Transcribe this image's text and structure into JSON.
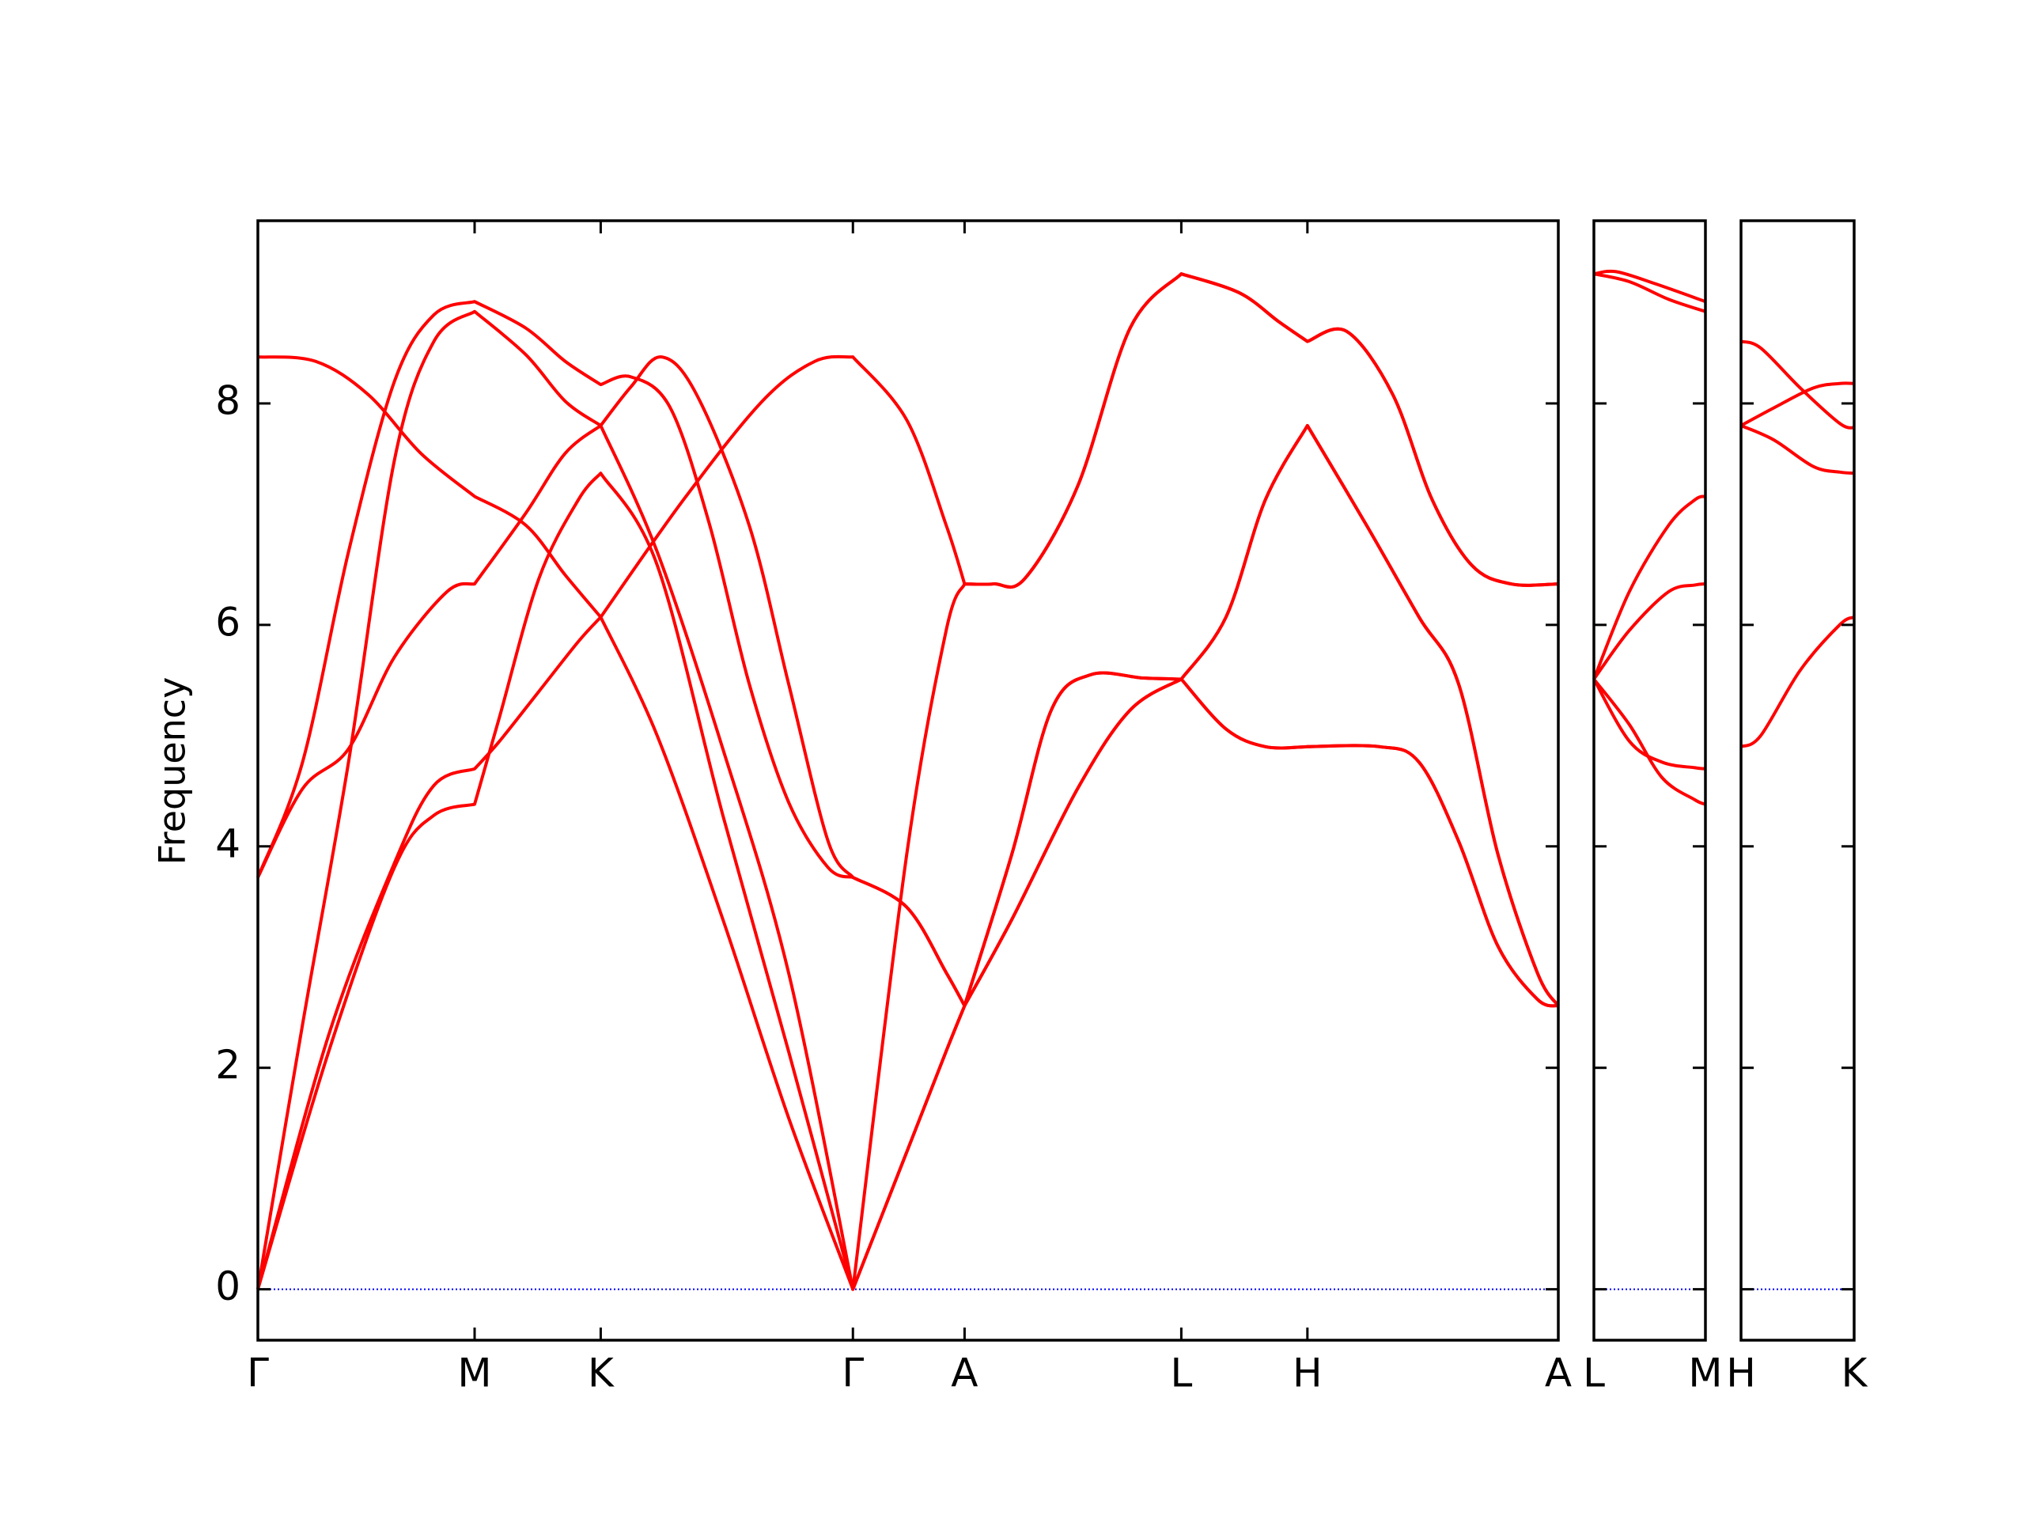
{
  "chart_data": [
    {
      "type": "line",
      "ylabel": "Frequency",
      "color": "#ff0000",
      "hline": 0,
      "hline_color": "#0000ff",
      "xlim": [
        0,
        9.9
      ],
      "ylim": [
        -0.46,
        9.65
      ],
      "tick_labels": true,
      "xticks": [
        {
          "value": 0,
          "label": "Γ"
        },
        {
          "value": 1.65,
          "label": "M"
        },
        {
          "value": 2.61,
          "label": "K"
        },
        {
          "value": 4.53,
          "label": "Γ"
        },
        {
          "value": 5.38,
          "label": "A"
        },
        {
          "value": 7.03,
          "label": "L"
        },
        {
          "value": 7.99,
          "label": "H"
        },
        {
          "value": 9.9,
          "label": "A"
        }
      ],
      "yticks": [
        0,
        2,
        4,
        6,
        8
      ],
      "series": [
        {
          "x": [
            0,
            0.54,
            1.04,
            1.34,
            1.65,
            1.84,
            2.14,
            2.44,
            2.61,
            3.04,
            3.54,
            4.04,
            4.53,
            4.94,
            5.24,
            5.38,
            5.74,
            6.24,
            6.64,
            7.03,
            7.37,
            7.67,
            7.99,
            8.54,
            8.84,
            9.14,
            9.44,
            9.74,
            9.9
          ],
          "values": [
            0,
            2.15,
            3.81,
            4.28,
            4.38,
            5.17,
            6.42,
            7.13,
            7.37,
            6.54,
            4.28,
            2.15,
            0,
            1.24,
            2.15,
            2.56,
            3.34,
            4.52,
            5.23,
            5.51,
            5.06,
            4.9,
            4.9,
            4.9,
            4.76,
            4.05,
            3.1,
            2.62,
            2.56
          ]
        },
        {
          "x": [
            0,
            0.54,
            1.04,
            1.34,
            1.65,
            1.84,
            2.14,
            2.44,
            2.61,
            3.24,
            3.84,
            4.24,
            4.53,
            4.94,
            5.24,
            5.38,
            5.6,
            5.84,
            6.24,
            6.64,
            7.03,
            7.47,
            7.77,
            7.99,
            8.29,
            8.64,
            8.94,
            9.24,
            9.54,
            9.9
          ],
          "values": [
            0,
            2.3,
            3.85,
            4.55,
            4.7,
            4.95,
            5.4,
            5.85,
            6.07,
            7.13,
            8.02,
            8.38,
            8.42,
            7.85,
            6.9,
            6.37,
            6.37,
            6.42,
            7.25,
            8.68,
            9.17,
            9.0,
            8.74,
            8.56,
            8.65,
            8.08,
            7.13,
            6.54,
            6.37,
            6.37
          ]
        },
        {
          "x": [
            0,
            0.34,
            0.69,
            1.04,
            1.34,
            1.65,
            2.04,
            2.34,
            2.61,
            3.04,
            3.54,
            4.04,
            4.53,
            4.94,
            5.24,
            5.38,
            5.74,
            6.24,
            6.64,
            7.03,
            7.37,
            7.67,
            7.99,
            8.54,
            8.84,
            9.14,
            9.44,
            9.74,
            9.9
          ],
          "values": [
            0,
            2.39,
            4.76,
            7.49,
            8.56,
            8.83,
            8.44,
            8.02,
            7.8,
            6.66,
            4.88,
            2.86,
            0,
            1.24,
            2.15,
            2.56,
            3.34,
            4.52,
            5.23,
            5.51,
            5.06,
            4.9,
            4.9,
            4.9,
            4.76,
            4.05,
            3.1,
            2.62,
            2.56
          ]
        },
        {
          "x": [
            0,
            0.34,
            0.69,
            1.04,
            1.44,
            1.65,
            2.04,
            2.34,
            2.61,
            2.84,
            3.07,
            3.34,
            3.74,
            4.04,
            4.34,
            4.53,
            4.94,
            5.24,
            5.38,
            5.74,
            6.04,
            6.34,
            6.74,
            7.03,
            7.37,
            7.67,
            7.99,
            8.44,
            8.84,
            9.14,
            9.44,
            9.74,
            9.9
          ],
          "values": [
            3.72,
            4.52,
            4.88,
            5.71,
            6.3,
            6.37,
            7.01,
            7.55,
            7.8,
            8.15,
            8.42,
            8.08,
            6.9,
            5.47,
            4.05,
            3.72,
            3.45,
            2.86,
            2.56,
            3.93,
            5.23,
            5.55,
            5.52,
            5.51,
            6.07,
            7.13,
            7.8,
            6.9,
            6.07,
            5.47,
            3.93,
            2.86,
            2.56
          ]
        },
        {
          "x": [
            0,
            0.34,
            0.69,
            1.04,
            1.34,
            1.65,
            2.04,
            2.34,
            2.61,
            2.84,
            3.14,
            3.44,
            3.74,
            4.04,
            4.34,
            4.53,
            4.94,
            5.24,
            5.38,
            5.74,
            6.04,
            6.34,
            6.74,
            7.03,
            7.37,
            7.67,
            7.99,
            8.44,
            8.84,
            9.14,
            9.44,
            9.74,
            9.9
          ],
          "values": [
            3.72,
            4.76,
            6.66,
            8.2,
            8.8,
            8.92,
            8.68,
            8.38,
            8.17,
            8.24,
            7.96,
            6.9,
            5.47,
            4.4,
            3.81,
            3.72,
            3.45,
            2.86,
            2.56,
            3.93,
            5.23,
            5.55,
            5.52,
            5.51,
            6.07,
            7.13,
            7.8,
            6.9,
            6.07,
            5.47,
            3.93,
            2.86,
            2.56
          ]
        },
        {
          "x": [
            0,
            0.44,
            0.84,
            1.24,
            1.65,
            2.04,
            2.34,
            2.61,
            3.04,
            3.54,
            4.04,
            4.53,
            4.94,
            5.24,
            5.38,
            5.6,
            5.84,
            6.24,
            6.64,
            7.03,
            7.47,
            7.77,
            7.99,
            8.29,
            8.64,
            8.94,
            9.24,
            9.54,
            9.9
          ],
          "values": [
            8.42,
            8.38,
            8.08,
            7.55,
            7.16,
            6.9,
            6.45,
            6.07,
            5.0,
            3.34,
            1.55,
            0,
            3.93,
            5.95,
            6.37,
            6.37,
            6.42,
            7.25,
            8.68,
            9.17,
            9.0,
            8.74,
            8.56,
            8.65,
            8.08,
            7.13,
            6.54,
            6.37,
            6.37
          ]
        }
      ]
    },
    {
      "type": "line",
      "color": "#ff0000",
      "hline": 0,
      "hline_color": "#0000ff",
      "xlim": [
        0,
        0.85
      ],
      "ylim": [
        -0.46,
        9.65
      ],
      "tick_labels": false,
      "xticks": [
        {
          "value": 0,
          "label": "L"
        },
        {
          "value": 0.85,
          "label": "M"
        }
      ],
      "yticks": [
        0,
        2,
        4,
        6,
        8
      ],
      "series": [
        {
          "x": [
            0,
            0.17,
            0.47,
            0.85
          ],
          "values": [
            9.17,
            9.19,
            9.08,
            8.92
          ]
        },
        {
          "x": [
            0,
            0.27,
            0.57,
            0.85
          ],
          "values": [
            9.17,
            9.1,
            8.94,
            8.83
          ]
        },
        {
          "x": [
            0,
            0.27,
            0.57,
            0.77,
            0.85
          ],
          "values": [
            5.51,
            6.3,
            6.9,
            7.13,
            7.16
          ]
        },
        {
          "x": [
            0,
            0.27,
            0.57,
            0.77,
            0.85
          ],
          "values": [
            5.51,
            5.95,
            6.3,
            6.36,
            6.37
          ]
        },
        {
          "x": [
            0,
            0.27,
            0.52,
            0.77,
            0.85
          ],
          "values": [
            5.51,
            4.95,
            4.76,
            4.71,
            4.7
          ]
        },
        {
          "x": [
            0,
            0.27,
            0.52,
            0.77,
            0.85
          ],
          "values": [
            5.51,
            5.1,
            4.62,
            4.42,
            4.38
          ]
        }
      ]
    },
    {
      "type": "line",
      "color": "#ff0000",
      "hline": 0,
      "hline_color": "#0000ff",
      "xlim": [
        0,
        0.86
      ],
      "ylim": [
        -0.46,
        9.65
      ],
      "tick_labels": false,
      "xticks": [
        {
          "value": 0,
          "label": "H"
        },
        {
          "value": 0.86,
          "label": "K"
        }
      ],
      "yticks": [
        0,
        2,
        4,
        6,
        8
      ],
      "series": [
        {
          "x": [
            0,
            0.15,
            0.45,
            0.75,
            0.86
          ],
          "values": [
            8.56,
            8.5,
            8.14,
            7.82,
            7.78
          ]
        },
        {
          "x": [
            0,
            0.25,
            0.55,
            0.75,
            0.86
          ],
          "values": [
            7.8,
            7.96,
            8.14,
            8.18,
            8.18
          ]
        },
        {
          "x": [
            0,
            0.25,
            0.55,
            0.75,
            0.86
          ],
          "values": [
            7.8,
            7.67,
            7.43,
            7.38,
            7.37
          ]
        },
        {
          "x": [
            0,
            0.15,
            0.45,
            0.75,
            0.86
          ],
          "values": [
            4.9,
            5.0,
            5.59,
            6.0,
            6.07
          ]
        }
      ]
    }
  ]
}
